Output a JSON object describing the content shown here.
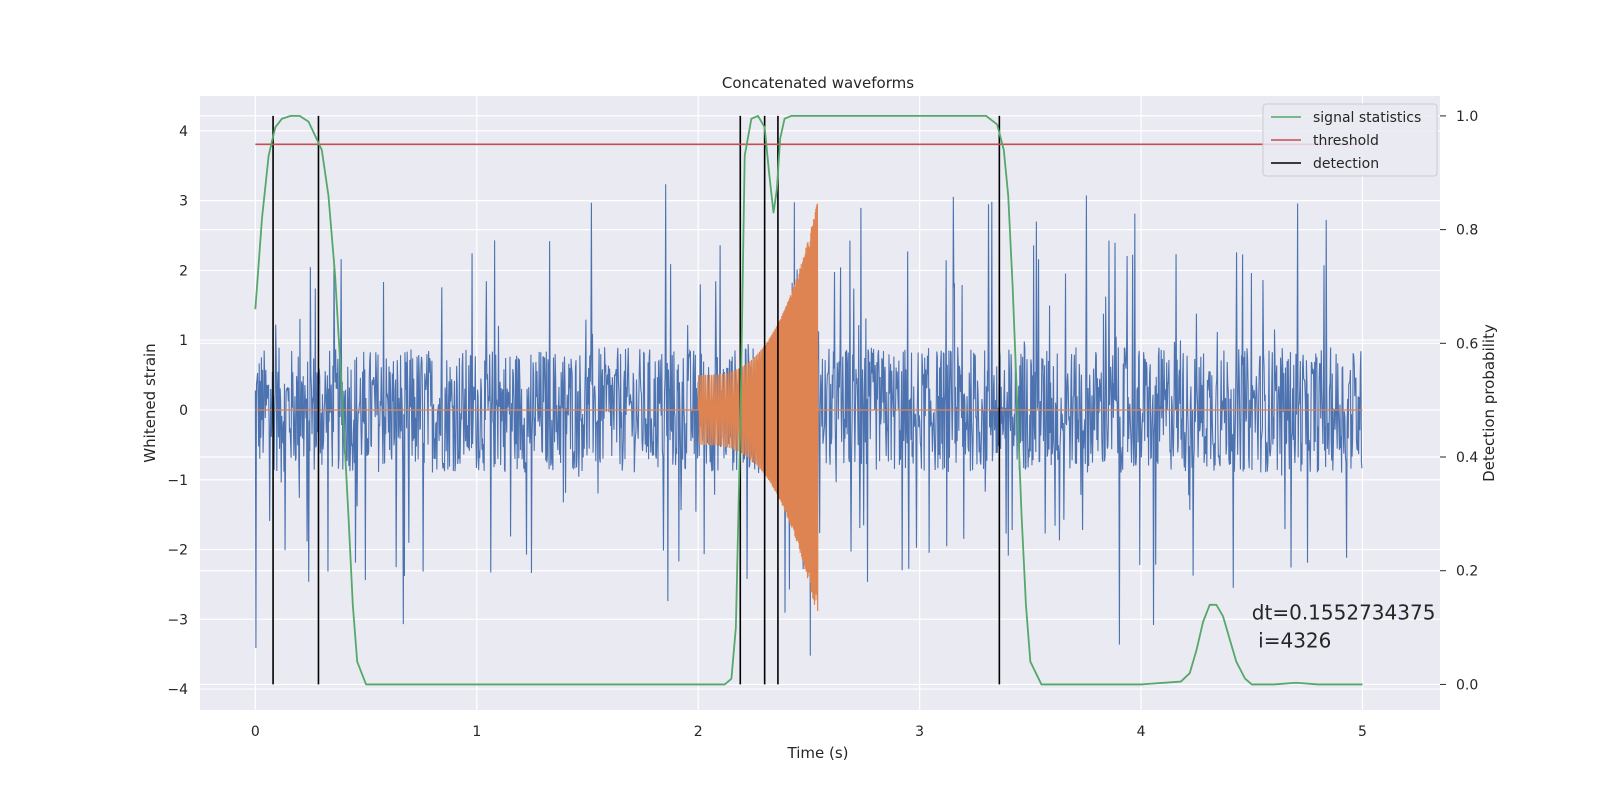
{
  "chart_data": {
    "type": "line",
    "title": "Concatenated waveforms",
    "xlabel": "Time (s)",
    "ylabel": "Whitened strain",
    "y2label": "Detection probability",
    "xlim": [
      -0.25,
      5.35
    ],
    "ylim": [
      -4.3,
      4.5
    ],
    "y2lim": [
      -0.045,
      1.035
    ],
    "x_ticks": [
      0,
      1,
      2,
      3,
      4,
      5
    ],
    "y_ticks": [
      -4,
      -3,
      -2,
      -1,
      0,
      1,
      2,
      3,
      4
    ],
    "y2_ticks": [
      0.0,
      0.2,
      0.4,
      0.6,
      0.8,
      1.0
    ],
    "y2_tick_labels": [
      "0.0",
      "0.2",
      "0.4",
      "0.6",
      "0.8",
      "1.0"
    ],
    "grid": true,
    "legend_position": "top-right",
    "colors": {
      "strain": "#4c72b0",
      "template": "#dd8452",
      "signal_statistics": "#55a868",
      "threshold": "#c44e52",
      "detection": "#000000",
      "axes_bg": "#eaeaf2",
      "grid": "#ffffff"
    },
    "series": [
      {
        "name": "",
        "axis": "left",
        "kind": "noise",
        "color": "#4c72b0",
        "x_range": [
          0,
          5
        ],
        "envelope": {
          "core": 0.9,
          "peak_max": 3.3,
          "peak_min": -3.9
        }
      },
      {
        "name": "",
        "axis": "left",
        "kind": "chirp",
        "color": "#dd8452",
        "x_range": [
          0,
          5
        ],
        "chirp": {
          "start": 2.0,
          "end": 2.54,
          "amp_start": 0.5,
          "amp_end": 3.0
        }
      },
      {
        "name": "signal statistics",
        "axis": "right",
        "color": "#55a868",
        "x": [
          0.0,
          0.03,
          0.06,
          0.09,
          0.12,
          0.16,
          0.2,
          0.24,
          0.27,
          0.3,
          0.33,
          0.36,
          0.39,
          0.42,
          0.44,
          0.46,
          0.5,
          1.0,
          1.5,
          2.0,
          2.12,
          2.15,
          2.17,
          2.19,
          2.21,
          2.24,
          2.27,
          2.3,
          2.32,
          2.34,
          2.355,
          2.37,
          2.39,
          2.42,
          2.5,
          3.0,
          3.3,
          3.35,
          3.38,
          3.4,
          3.42,
          3.44,
          3.46,
          3.48,
          3.5,
          3.55,
          4.0,
          4.18,
          4.22,
          4.25,
          4.28,
          4.31,
          4.34,
          4.37,
          4.4,
          4.43,
          4.47,
          4.5,
          4.6,
          4.7,
          4.8,
          5.0
        ],
        "values": [
          0.66,
          0.82,
          0.93,
          0.98,
          0.995,
          1.0,
          1.0,
          0.99,
          0.965,
          0.94,
          0.86,
          0.72,
          0.52,
          0.3,
          0.14,
          0.04,
          0.0,
          0.0,
          0.0,
          0.0,
          0.0,
          0.01,
          0.1,
          0.45,
          0.93,
          0.995,
          1.0,
          0.98,
          0.9,
          0.83,
          0.87,
          0.96,
          0.995,
          1.0,
          1.0,
          1.0,
          1.0,
          0.985,
          0.94,
          0.86,
          0.7,
          0.5,
          0.3,
          0.14,
          0.04,
          0.0,
          0.0,
          0.005,
          0.02,
          0.06,
          0.11,
          0.14,
          0.14,
          0.12,
          0.08,
          0.04,
          0.01,
          0.0,
          0.0,
          0.003,
          0.0,
          0.0
        ]
      },
      {
        "name": "threshold",
        "axis": "right",
        "color": "#c44e52",
        "x": [
          0,
          5
        ],
        "values": [
          0.95,
          0.95
        ]
      },
      {
        "name": "detection",
        "axis": "right",
        "color": "#000000",
        "kind": "vlines",
        "x": [
          0.08,
          0.285,
          2.19,
          2.3,
          2.36,
          3.36
        ],
        "ymin": 0.0,
        "ymax": 1.0
      }
    ],
    "annotation": {
      "line1": "dt=0.1552734375",
      "line2": " i=4326",
      "x": 4.5,
      "y": -3.0
    }
  }
}
